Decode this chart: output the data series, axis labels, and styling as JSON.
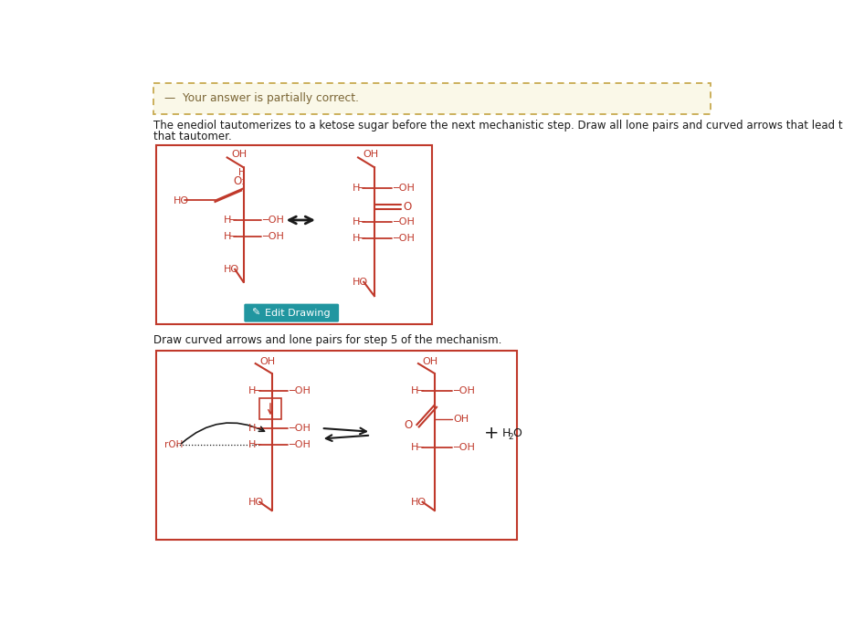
{
  "banner_bg": "#faf8e8",
  "banner_border": "#c8aa50",
  "banner_text": "Your answer is partially correct.",
  "banner_icon": "—",
  "banner_text_color": "#7a6535",
  "body_text1": "The enediol tautomerizes to a ketose sugar before the next mechanistic step. Draw all lone pairs and curved arrows that lead to",
  "body_text2": "that tautomer.",
  "step5_text": "Draw curved arrows and lone pairs for step 5 of the mechanism.",
  "edit_btn_text": "  Edit Drawing",
  "edit_btn_color": "#2196a0",
  "red": "#c0392b",
  "dark": "#1a1a1a",
  "box_border": "#c0392b",
  "page_bg": "#ffffff"
}
